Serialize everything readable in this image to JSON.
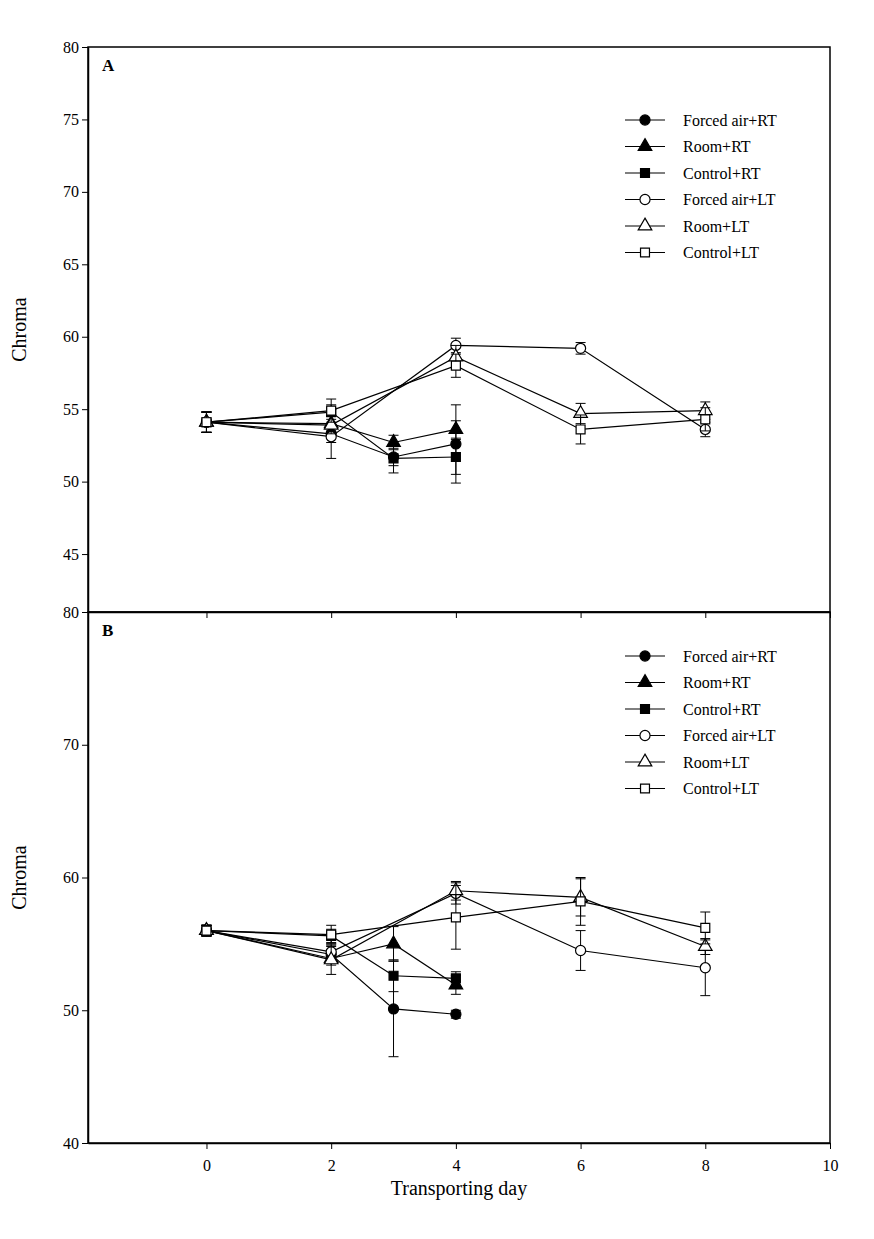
{
  "chart_data": [
    {
      "type": "line",
      "title": "A",
      "ylabel": "Chroma",
      "xlim": [
        -1.9,
        10
      ],
      "xticks": [
        0,
        2,
        4,
        6,
        8,
        10
      ],
      "ylim": [
        41,
        80
      ],
      "yticks": [
        45,
        50,
        55,
        60,
        65,
        70,
        75,
        80
      ],
      "tick_labels": "y",
      "legend": "upper right",
      "series": [
        {
          "name": "Forced air+RT",
          "color": "#000000",
          "marker": "filled-circle",
          "x": [
            0,
            2,
            3,
            4
          ],
          "values": [
            54.1,
            53.3,
            51.7,
            52.6
          ],
          "errors": [
            0.7,
            0.6,
            0.6,
            2.7
          ]
        },
        {
          "name": "Room+RT",
          "color": "#000000",
          "marker": "filled-triangle",
          "x": [
            0,
            2,
            3,
            4
          ],
          "values": [
            54.1,
            54.0,
            52.7,
            53.6
          ],
          "errors": [
            0.7,
            0.5,
            0.5,
            0.6
          ]
        },
        {
          "name": "Control+RT",
          "color": "#000000",
          "marker": "filled-square",
          "x": [
            0,
            2,
            3,
            4
          ],
          "values": [
            54.1,
            54.8,
            51.6,
            51.7
          ],
          "errors": [
            0.7,
            0.5,
            1.0,
            1.2
          ]
        },
        {
          "name": "Forced air+LT",
          "color": "#000000",
          "marker": "open-circle",
          "x": [
            0,
            2,
            4,
            6,
            8
          ],
          "values": [
            54.1,
            53.1,
            59.4,
            59.2,
            53.6
          ],
          "errors": [
            0.7,
            1.5,
            0.5,
            0.4,
            0.5
          ]
        },
        {
          "name": "Room+LT",
          "color": "#000000",
          "marker": "open-triangle",
          "x": [
            0,
            2,
            4,
            6,
            8
          ],
          "values": [
            54.1,
            53.9,
            58.6,
            54.7,
            54.9
          ],
          "errors": [
            0.7,
            0.6,
            0.8,
            0.7,
            0.6
          ]
        },
        {
          "name": "Control+LT",
          "color": "#000000",
          "marker": "open-square",
          "x": [
            0,
            2,
            4,
            6,
            8
          ],
          "values": [
            54.1,
            54.9,
            58.0,
            53.6,
            54.3
          ],
          "errors": [
            0.7,
            0.8,
            0.8,
            1.0,
            0.8
          ]
        }
      ]
    },
    {
      "type": "line",
      "title": "B",
      "xlabel": "Transporting day",
      "ylabel": "Chroma",
      "xlim": [
        -1.9,
        10
      ],
      "xticks": [
        0,
        2,
        4,
        6,
        8,
        10
      ],
      "ylim": [
        40,
        80
      ],
      "yticks": [
        40,
        50,
        60,
        70,
        80
      ],
      "legend": "upper right",
      "series": [
        {
          "name": "Forced air+RT",
          "color": "#000000",
          "marker": "filled-circle",
          "x": [
            0,
            2,
            3,
            4
          ],
          "values": [
            56.0,
            54.2,
            50.1,
            49.7
          ],
          "errors": [
            0.4,
            0.6,
            3.6,
            0.3
          ]
        },
        {
          "name": "Room+RT",
          "color": "#000000",
          "marker": "filled-triangle",
          "x": [
            0,
            2,
            3,
            4
          ],
          "values": [
            56.0,
            53.9,
            55.0,
            51.9
          ],
          "errors": [
            0.4,
            0.5,
            1.3,
            0.7
          ]
        },
        {
          "name": "Control+RT",
          "color": "#000000",
          "marker": "filled-square",
          "x": [
            0,
            2,
            3,
            4
          ],
          "values": [
            56.0,
            55.6,
            52.6,
            52.4
          ],
          "errors": [
            0.4,
            0.5,
            1.2,
            0.5
          ]
        },
        {
          "name": "Forced air+LT",
          "color": "#000000",
          "marker": "open-circle",
          "x": [
            0,
            2,
            4,
            6,
            8
          ],
          "values": [
            56.0,
            54.4,
            58.8,
            54.5,
            53.2
          ],
          "errors": [
            0.4,
            0.6,
            0.8,
            1.5,
            2.1
          ]
        },
        {
          "name": "Room+LT",
          "color": "#000000",
          "marker": "open-triangle",
          "x": [
            0,
            2,
            4,
            6,
            8
          ],
          "values": [
            56.0,
            53.8,
            59.0,
            58.5,
            54.8
          ],
          "errors": [
            0.4,
            1.1,
            0.7,
            1.4,
            0.6
          ]
        },
        {
          "name": "Control+LT",
          "color": "#000000",
          "marker": "open-square",
          "x": [
            0,
            2,
            4,
            6,
            8
          ],
          "values": [
            56.0,
            55.7,
            57.0,
            58.2,
            56.2
          ],
          "errors": [
            0.4,
            0.7,
            2.4,
            1.8,
            1.2
          ]
        }
      ]
    }
  ]
}
